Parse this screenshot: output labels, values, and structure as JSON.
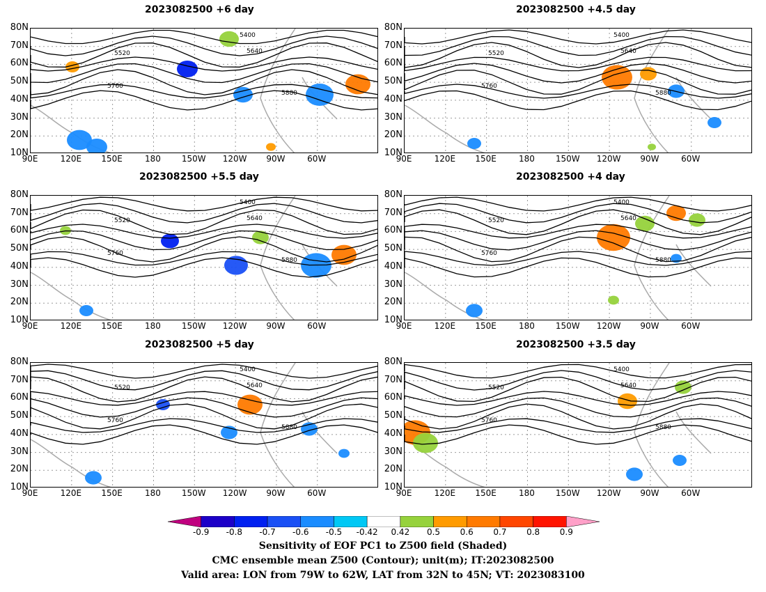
{
  "panels": [
    {
      "title": "2023082500  +6 day"
    },
    {
      "title": "2023082500  +4.5  day"
    },
    {
      "title": "2023082500  +5.5  day"
    },
    {
      "title": "2023082500  +4  day"
    },
    {
      "title": "2023082500  +5  day"
    },
    {
      "title": "2023082500  +3.5  day"
    }
  ],
  "lat_labels": [
    "80N",
    "70N",
    "60N",
    "50N",
    "40N",
    "30N",
    "20N",
    "10N"
  ],
  "lon_labels": [
    "90E",
    "120E",
    "150E",
    "180",
    "150W",
    "120W",
    "90W",
    "60W"
  ],
  "contour_labels": {
    "c5400": "5400",
    "c5520": "5520",
    "c5640": "5640",
    "c5760": "5760",
    "c5880": "5880"
  },
  "colorbar": {
    "labels": [
      "-0.9",
      "-0.8",
      "-0.7",
      "-0.6",
      "-0.5",
      "-0.42",
      "0.42",
      "0.5",
      "0.6",
      "0.7",
      "0.8",
      "0.9"
    ],
    "colors": [
      "#c0007f",
      "#1c00c8",
      "#0020f0",
      "#1a50f5",
      "#1a8cff",
      "#00c8f5",
      "#ffffff",
      "#96d23c",
      "#ff9b00",
      "#ff7a00",
      "#ff4600",
      "#ff1400",
      "#ffa0c8"
    ]
  },
  "footer": {
    "line1": "Sensitivity of EOF PC1 to Z500 field (Shaded)",
    "line2": "CMC ensemble mean Z500 (Contour); unit(m); IT:2023082500",
    "line3": "Valid area: LON from 79W to 62W, LAT from 32N to 45N; VT: 2023083100"
  }
}
